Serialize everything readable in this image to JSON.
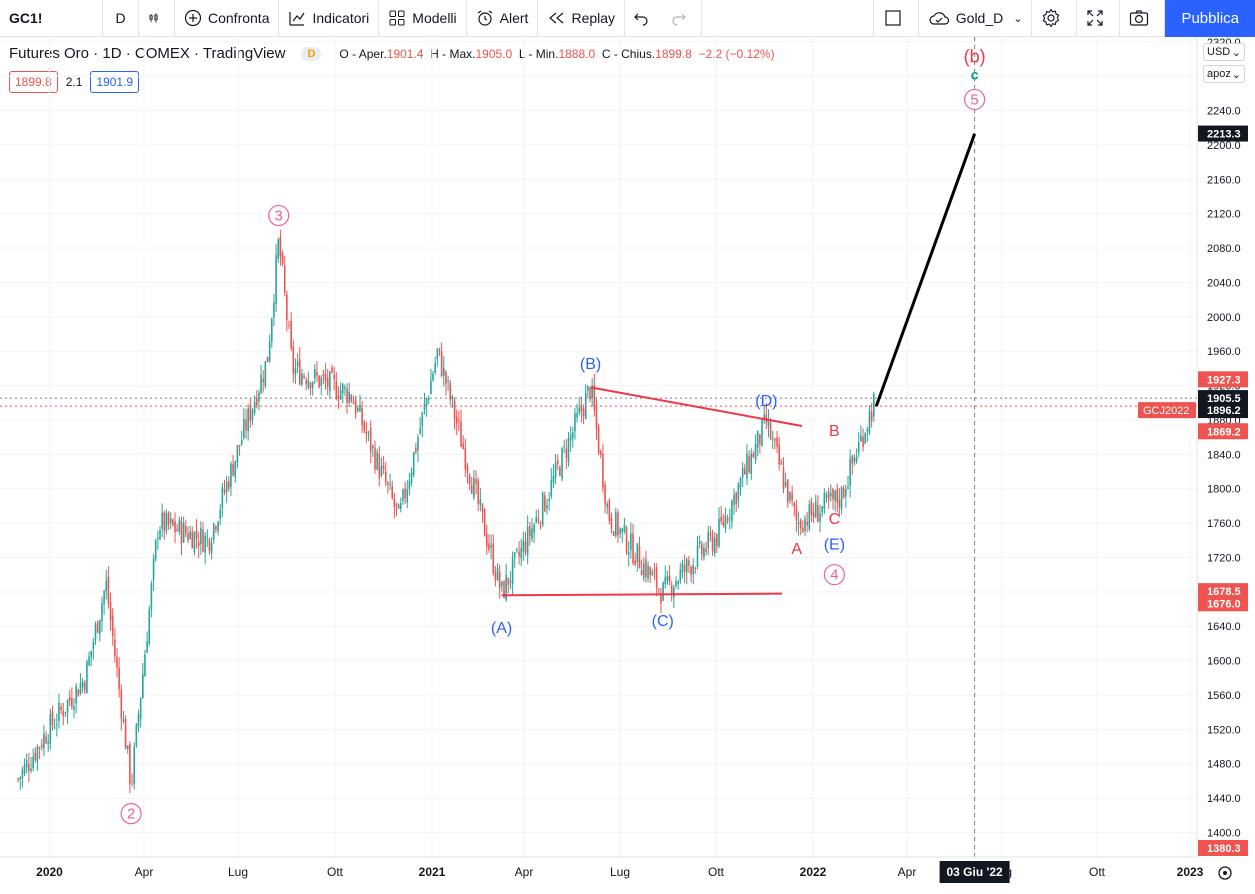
{
  "toolbar": {
    "symbol": "GC1!",
    "interval": "D",
    "compare": "Confronta",
    "indicators": "Indicatori",
    "templates": "Modelli",
    "alert": "Alert",
    "replay": "Replay",
    "layout_name": "Gold_D",
    "publish": "Pubblica"
  },
  "legend": {
    "title": "Futures Oro · 1D · COMEX · TradingView",
    "badge": "D",
    "open_label": "O - Aper.",
    "open": "1901.4",
    "high_label": "H - Max.",
    "high": "1905.0",
    "low_label": "L - Min.",
    "low": "1888.0",
    "close_label": "C - Chius.",
    "close": "1899.8",
    "change": "−2.2 (−0.12%)",
    "bid": "1899.8",
    "spread": "2.1",
    "ask": "1901.9"
  },
  "axis_controls": {
    "currency": "USD",
    "unit": "apoz"
  },
  "price_axis": {
    "ticks": [
      1400,
      1440,
      1480,
      1520,
      1560,
      1600,
      1640,
      1680,
      1720,
      1760,
      1800,
      1840,
      1880,
      1920,
      1960,
      2000,
      2040,
      2080,
      2120,
      2160,
      2200,
      2240,
      2280,
      2320
    ],
    "tick_labels": [
      "1400.0",
      "1440.0",
      "1480.0",
      "1520.0",
      "1560.0",
      "1600.0",
      "1640.0",
      "1680.0",
      "1720.0",
      "1760.0",
      "1800.0",
      "1840.0",
      "1880.0",
      "1920.0",
      "1960.0",
      "2000.0",
      "2040.0",
      "2080.0",
      "2120.0",
      "2160.0",
      "2200.0",
      "2240.0",
      "2280.0",
      "2320.0"
    ],
    "range": [
      1360,
      2330
    ],
    "price_labels": [
      {
        "value": 2213.3,
        "text": "2213.3",
        "color": "#131722"
      },
      {
        "value": 1927.3,
        "text": "1927.3",
        "color": "#ef5350"
      },
      {
        "value": 1905.5,
        "text": "1905.5",
        "color": "#131722"
      },
      {
        "value": 1896.2,
        "text": "1896.2",
        "color": "#131722"
      },
      {
        "value": 1869.2,
        "text": "1869.2",
        "color": "#ef5350"
      },
      {
        "value": 1678.5,
        "text": "1678.5",
        "color": "#ef5350"
      },
      {
        "value": 1676.0,
        "text": "1676.0",
        "color": "#ef5350"
      },
      {
        "value": 1380.3,
        "text": "1380.3",
        "color": "#ef5350"
      }
    ],
    "contract_label": "GCJ2022"
  },
  "time_axis": {
    "labels": [
      "2020",
      "Apr",
      "Lug",
      "Ott",
      "2021",
      "Apr",
      "Lug",
      "Ott",
      "2022",
      "Apr",
      "Lug",
      "Ott",
      "2023"
    ],
    "crosshair_label": "03 Giu '22"
  },
  "colors": {
    "up": "#26a69a",
    "down": "#ef5350",
    "wave_blue": "#2962ff",
    "wave_red": "#f23645",
    "wave_pink": "#f06292",
    "wave_green": "#089981"
  },
  "chart_data": {
    "type": "candlestick",
    "title": "Futures Oro · 1D · COMEX",
    "xlabel": "",
    "ylabel": "",
    "ylim": [
      1360,
      2330
    ],
    "approx_path": [
      {
        "date": "2019-12-02",
        "price": 1462
      },
      {
        "date": "2019-12-31",
        "price": 1520
      },
      {
        "date": "2020-02-04",
        "price": 1580
      },
      {
        "date": "2020-02-24",
        "price": 1690
      },
      {
        "date": "2020-03-19",
        "price": 1455
      },
      {
        "date": "2020-04-14",
        "price": 1760
      },
      {
        "date": "2020-06-01",
        "price": 1740
      },
      {
        "date": "2020-07-27",
        "price": 1950
      },
      {
        "date": "2020-08-07",
        "price": 2089
      },
      {
        "date": "2020-08-20",
        "price": 1940
      },
      {
        "date": "2020-10-15",
        "price": 1910
      },
      {
        "date": "2020-11-30",
        "price": 1765
      },
      {
        "date": "2021-01-06",
        "price": 1960
      },
      {
        "date": "2021-03-08",
        "price": 1678
      },
      {
        "date": "2021-04-20",
        "price": 1790
      },
      {
        "date": "2021-06-01",
        "price": 1918
      },
      {
        "date": "2021-06-18",
        "price": 1770
      },
      {
        "date": "2021-08-09",
        "price": 1679
      },
      {
        "date": "2021-09-30",
        "price": 1745
      },
      {
        "date": "2021-11-16",
        "price": 1877
      },
      {
        "date": "2021-12-15",
        "price": 1760
      },
      {
        "date": "2022-01-26",
        "price": 1790
      },
      {
        "date": "2022-02-28",
        "price": 1905
      }
    ],
    "projection": [
      {
        "date": "2022-03-01",
        "price": 1896
      },
      {
        "date": "2022-06-03",
        "price": 2213
      }
    ],
    "triangle_lines": [
      {
        "from": {
          "date": "2021-03-08",
          "price": 1676
        },
        "to": {
          "date": "2021-12-01",
          "price": 1678
        }
      },
      {
        "from": {
          "date": "2021-06-01",
          "price": 1918
        },
        "to": {
          "date": "2021-12-20",
          "price": 1873
        }
      }
    ],
    "wave_labels": [
      {
        "text": "2",
        "date": "2020-03-19",
        "price": 1422,
        "style": "circle-pink"
      },
      {
        "text": "3",
        "date": "2020-08-07",
        "price": 2118,
        "style": "circle-pink"
      },
      {
        "text": "(A)",
        "date": "2021-03-08",
        "price": 1638,
        "style": "blue"
      },
      {
        "text": "(B)",
        "date": "2021-06-01",
        "price": 1945,
        "style": "blue"
      },
      {
        "text": "(C)",
        "date": "2021-08-09",
        "price": 1646,
        "style": "blue"
      },
      {
        "text": "(D)",
        "date": "2021-11-16",
        "price": 1902,
        "style": "blue"
      },
      {
        "text": "B",
        "date": "2022-01-20",
        "price": 1867,
        "style": "red"
      },
      {
        "text": "A",
        "date": "2021-12-15",
        "price": 1730,
        "style": "red"
      },
      {
        "text": "C",
        "date": "2022-01-20",
        "price": 1765,
        "style": "red"
      },
      {
        "text": "(E)",
        "date": "2022-01-20",
        "price": 1735,
        "style": "blue"
      },
      {
        "text": "4",
        "date": "2022-01-20",
        "price": 1700,
        "style": "circle-pink"
      },
      {
        "text": "(b)",
        "date": "2022-06-03",
        "price": 2302,
        "style": "red-bold"
      },
      {
        "text": "c",
        "date": "2022-06-03",
        "price": 2282,
        "style": "green"
      },
      {
        "text": "5",
        "date": "2022-06-03",
        "price": 2253,
        "style": "circle-pink"
      }
    ]
  }
}
